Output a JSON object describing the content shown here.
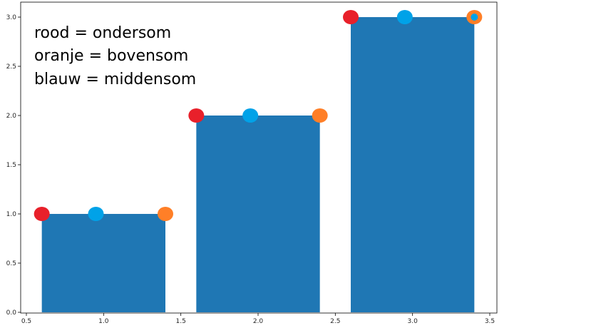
{
  "chart_data": {
    "type": "bar",
    "title": "",
    "xlabel": "",
    "ylabel": "",
    "xlim": [
      0.5,
      3.5
    ],
    "ylim": [
      0.0,
      3.0
    ],
    "grid": false,
    "x_ticks": [
      0.5,
      1.0,
      1.5,
      2.0,
      2.5,
      3.0,
      3.5
    ],
    "x_tick_labels": [
      "0.5",
      "1.0",
      "1.5",
      "2.0",
      "2.5",
      "3.0",
      "3.5"
    ],
    "y_ticks": [
      0.0,
      0.5,
      1.0,
      1.5,
      2.0,
      2.5,
      3.0
    ],
    "y_tick_labels": [
      "0.0",
      "0.5",
      "1.0",
      "1.5",
      "2.0",
      "2.5",
      "3.0"
    ],
    "bars": [
      {
        "x": 1.0,
        "width": 0.8,
        "value": 1.0
      },
      {
        "x": 2.0,
        "width": 0.8,
        "value": 2.0
      },
      {
        "x": 3.0,
        "width": 0.8,
        "value": 3.0
      }
    ],
    "bar_color": "#1f77b4",
    "series": [
      {
        "legend_text": "rood = ondersom",
        "color": "#e8202a",
        "x": [
          0.6,
          1.6,
          2.6
        ],
        "y": [
          1.0,
          2.0,
          3.0
        ]
      },
      {
        "legend_text": "oranje = bovensom",
        "color": "#ff7f27",
        "x": [
          1.4,
          2.4,
          3.4
        ],
        "y": [
          1.0,
          2.0,
          3.0
        ]
      },
      {
        "legend_text": "blauw = middensom",
        "color": "#00a2e8",
        "x": [
          0.95,
          1.95,
          2.95,
          3.4
        ],
        "y": [
          1.0,
          2.0,
          3.0,
          3.0
        ]
      }
    ],
    "annotations": [
      "rood = ondersom",
      "oranje = bovensom",
      "blauw = middensom"
    ]
  }
}
